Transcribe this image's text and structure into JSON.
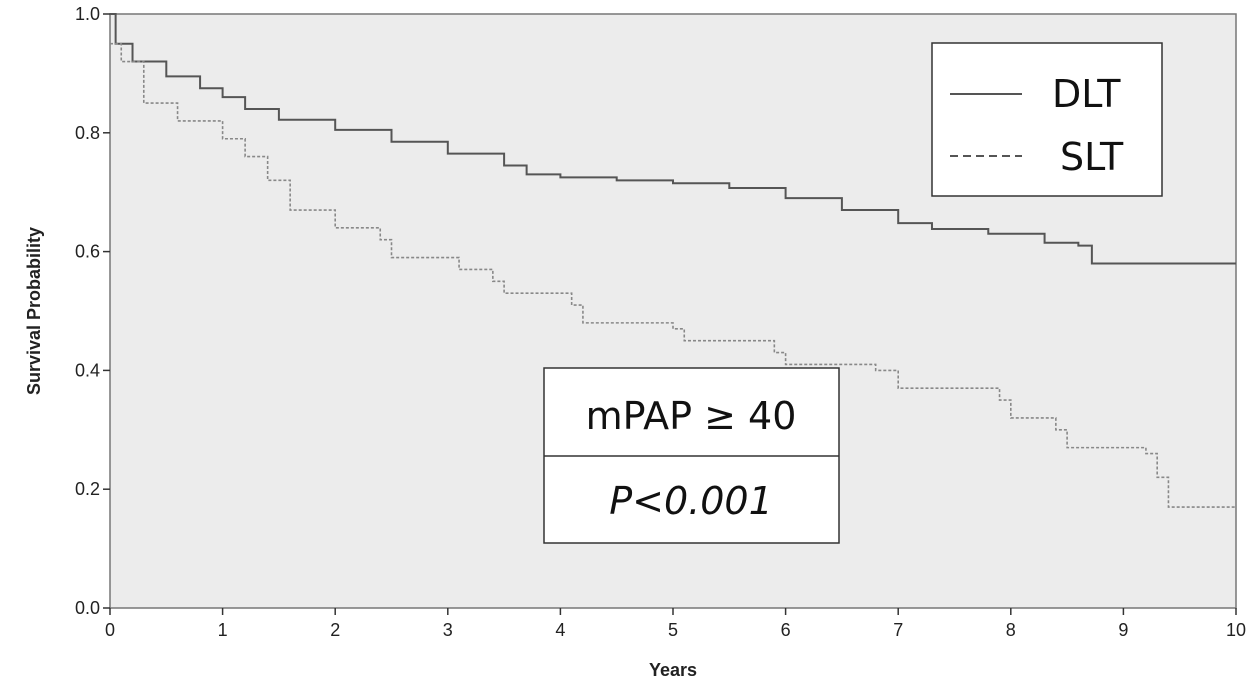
{
  "chart_data": {
    "type": "line",
    "xlabel": "Years",
    "ylabel": "Survival Probability",
    "xlim": [
      0,
      10
    ],
    "ylim": [
      0.0,
      1.0
    ],
    "x_ticks": [
      "0",
      "1",
      "2",
      "3",
      "4",
      "5",
      "6",
      "7",
      "8",
      "9",
      "10"
    ],
    "y_ticks": [
      "0.0",
      "0.2",
      "0.4",
      "0.6",
      "0.8",
      "1.0"
    ],
    "grid": false,
    "legend_position": "top-right",
    "annotation": {
      "line1": "mPAP ≥ 40",
      "line2": "P<0.001"
    },
    "series": [
      {
        "name": "DLT",
        "style": "solid",
        "color": "#555555",
        "points": [
          [
            0,
            1.0
          ],
          [
            0.05,
            0.95
          ],
          [
            0.2,
            0.92
          ],
          [
            0.5,
            0.895
          ],
          [
            0.8,
            0.875
          ],
          [
            1.0,
            0.86
          ],
          [
            1.2,
            0.84
          ],
          [
            1.5,
            0.822
          ],
          [
            2.0,
            0.805
          ],
          [
            2.5,
            0.785
          ],
          [
            3.0,
            0.765
          ],
          [
            3.5,
            0.745
          ],
          [
            3.7,
            0.73
          ],
          [
            4.0,
            0.725
          ],
          [
            4.5,
            0.72
          ],
          [
            5.0,
            0.715
          ],
          [
            5.5,
            0.707
          ],
          [
            6.0,
            0.69
          ],
          [
            6.5,
            0.67
          ],
          [
            7.0,
            0.648
          ],
          [
            7.3,
            0.638
          ],
          [
            7.8,
            0.63
          ],
          [
            8.3,
            0.615
          ],
          [
            8.6,
            0.61
          ],
          [
            8.72,
            0.58
          ],
          [
            10.0,
            0.58
          ]
        ]
      },
      {
        "name": "SLT",
        "style": "dashed",
        "color": "#888888",
        "points": [
          [
            0,
            0.95
          ],
          [
            0.1,
            0.92
          ],
          [
            0.3,
            0.85
          ],
          [
            0.6,
            0.82
          ],
          [
            1.0,
            0.79
          ],
          [
            1.2,
            0.76
          ],
          [
            1.4,
            0.72
          ],
          [
            1.6,
            0.67
          ],
          [
            2.0,
            0.64
          ],
          [
            2.4,
            0.62
          ],
          [
            2.5,
            0.59
          ],
          [
            3.1,
            0.57
          ],
          [
            3.4,
            0.55
          ],
          [
            3.5,
            0.53
          ],
          [
            4.1,
            0.51
          ],
          [
            4.2,
            0.48
          ],
          [
            5.0,
            0.47
          ],
          [
            5.1,
            0.45
          ],
          [
            5.9,
            0.43
          ],
          [
            6.0,
            0.41
          ],
          [
            6.8,
            0.4
          ],
          [
            7.0,
            0.37
          ],
          [
            7.9,
            0.35
          ],
          [
            8.0,
            0.32
          ],
          [
            8.4,
            0.3
          ],
          [
            8.5,
            0.27
          ],
          [
            9.2,
            0.26
          ],
          [
            9.3,
            0.22
          ],
          [
            9.4,
            0.17
          ],
          [
            10.0,
            0.17
          ]
        ]
      }
    ]
  }
}
